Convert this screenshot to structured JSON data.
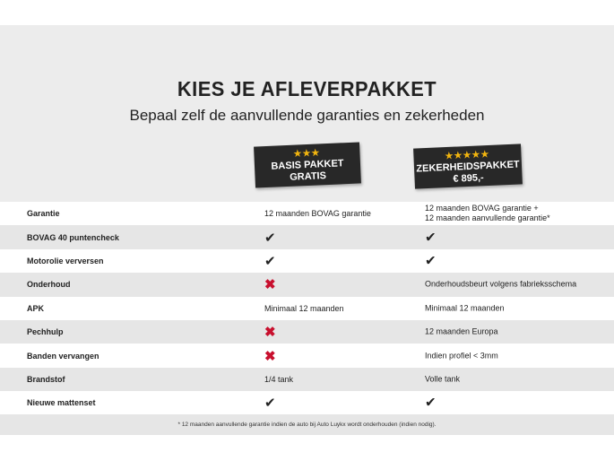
{
  "header": {
    "title": "KIES JE AFLEVERPAKKET",
    "subtitle": "Bepaal zelf de aanvullende garanties en zekerheden"
  },
  "packages": [
    {
      "stars": "★★★",
      "name": "BASIS PAKKET",
      "price": "GRATIS"
    },
    {
      "stars": "★★★★★",
      "name": "ZEKERHEIDSPAKKET",
      "price": "€ 895,-"
    }
  ],
  "rows": [
    {
      "label": "Garantie",
      "basis": "12 maanden BOVAG garantie",
      "basis_icon": "",
      "zeker": "12 maanden BOVAG garantie +",
      "zeker2": "12 maanden aanvullende garantie*",
      "zeker_icon": ""
    },
    {
      "label": "BOVAG 40 puntencheck",
      "basis_icon": "check",
      "zeker_icon": "check"
    },
    {
      "label": "Motorolie verversen",
      "basis_icon": "check",
      "zeker_icon": "check"
    },
    {
      "label": "Onderhoud",
      "basis_icon": "cross",
      "zeker": "Onderhoudsbeurt volgens fabrieksschema"
    },
    {
      "label": "APK",
      "basis": "Minimaal 12 maanden",
      "zeker": "Minimaal 12 maanden"
    },
    {
      "label": "Pechhulp",
      "basis_icon": "cross",
      "zeker": "12 maanden Europa"
    },
    {
      "label": "Banden vervangen",
      "basis_icon": "cross",
      "zeker": "Indien profiel < 3mm"
    },
    {
      "label": "Brandstof",
      "basis": "1/4 tank",
      "zeker": "Volle tank"
    },
    {
      "label": "Nieuwe mattenset",
      "basis_icon": "check",
      "zeker_icon": "check"
    }
  ],
  "footnote": "* 12 maanden aanvullende garantie indien de auto bij Auto Luykx wordt onderhouden (indien nodig).",
  "colors": {
    "check": "#222222",
    "cross": "#c8102e",
    "stars": "#f2b50f",
    "badge": "#282828"
  }
}
